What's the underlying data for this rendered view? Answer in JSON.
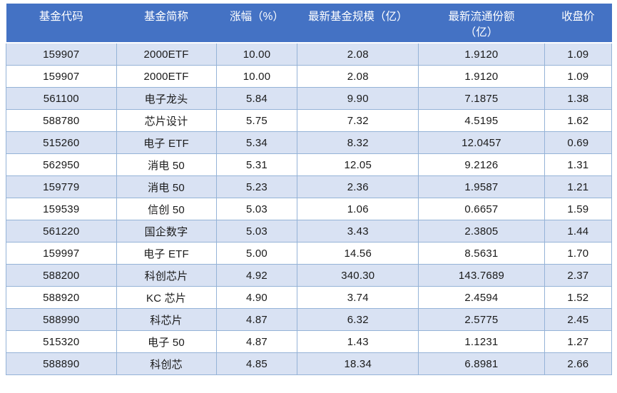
{
  "chart_data": {
    "type": "table",
    "columns": [
      "基金代码",
      "基金简称",
      "涨幅（%）",
      "最新基金规模（亿）",
      "最新流通份额（亿）",
      "收盘价"
    ],
    "rows": [
      [
        "159907",
        "2000ETF",
        "10.00",
        "2.08",
        "1.9120",
        "1.09"
      ],
      [
        "159907",
        "2000ETF",
        "10.00",
        "2.08",
        "1.9120",
        "1.09"
      ],
      [
        "561100",
        "电子龙头",
        "5.84",
        "9.90",
        "7.1875",
        "1.38"
      ],
      [
        "588780",
        "芯片设计",
        "5.75",
        "7.32",
        "4.5195",
        "1.62"
      ],
      [
        "515260",
        "电子 ETF",
        "5.34",
        "8.32",
        "12.0457",
        "0.69"
      ],
      [
        "562950",
        "消电 50",
        "5.31",
        "12.05",
        "9.2126",
        "1.31"
      ],
      [
        "159779",
        "消电 50",
        "5.23",
        "2.36",
        "1.9587",
        "1.21"
      ],
      [
        "159539",
        "信创 50",
        "5.03",
        "1.06",
        "0.6657",
        "1.59"
      ],
      [
        "561220",
        "国企数字",
        "5.03",
        "3.43",
        "2.3805",
        "1.44"
      ],
      [
        "159997",
        "电子 ETF",
        "5.00",
        "14.56",
        "8.5631",
        "1.70"
      ],
      [
        "588200",
        "科创芯片",
        "4.92",
        "340.30",
        "143.7689",
        "2.37"
      ],
      [
        "588920",
        "KC 芯片",
        "4.90",
        "3.74",
        "2.4594",
        "1.52"
      ],
      [
        "588990",
        "科芯片",
        "4.87",
        "6.32",
        "2.5775",
        "2.45"
      ],
      [
        "515320",
        "电子 50",
        "4.87",
        "1.43",
        "1.1231",
        "1.27"
      ],
      [
        "588890",
        "科创芯",
        "4.85",
        "18.34",
        "6.8981",
        "2.66"
      ]
    ],
    "layout": {
      "banded_rows": true,
      "header_position": "top"
    }
  },
  "colors": {
    "header_bg": "#4472C4",
    "header_text": "#FFFFFF",
    "band_row_bg": "#D9E2F3",
    "plain_row_bg": "#FFFFFF",
    "grid_border": "#95B3D7",
    "body_text": "#1A1A1A"
  }
}
